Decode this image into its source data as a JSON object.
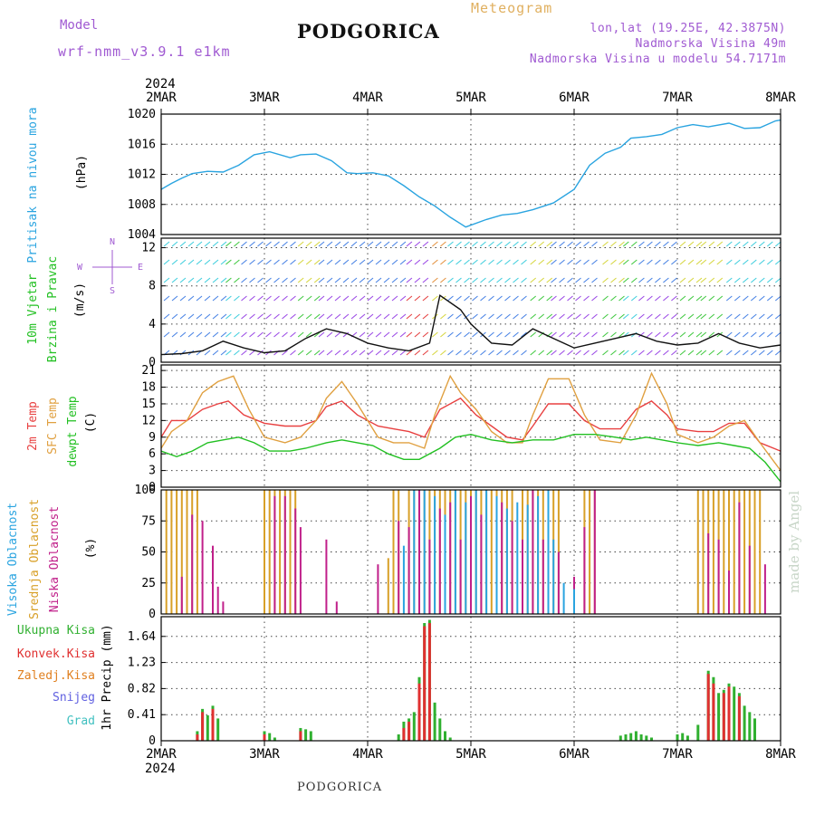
{
  "header": {
    "model_label": "Model",
    "model_name": "wrf-nmm_v3.9.1 e1km",
    "city": "PODGORICA",
    "meteogram": "Meteogram",
    "lonlat": "lon,lat (19.25E, 42.3875N)",
    "altitude": "Nadmorska Visina 49m",
    "model_altitude": "Nadmorska Visina u modelu 54.7171m",
    "footer": "PODGORICA",
    "made_by": "made by Angel"
  },
  "axis": {
    "year": "2024",
    "days": [
      "2MAR",
      "3MAR",
      "4MAR",
      "5MAR",
      "6MAR",
      "7MAR",
      "8MAR"
    ]
  },
  "colors": {
    "pressure": "#2aa4e0",
    "temp2m": "#e84040",
    "sfc_temp": "#e0a040",
    "dewpt": "#22c022",
    "high_cloud": "#2aa4e0",
    "mid_cloud": "#d8a028",
    "low_cloud": "#c0208a",
    "total_precip": "#30b030",
    "conv_precip": "#e03030"
  },
  "chart_data": [
    {
      "type": "line",
      "panel": "pressure",
      "ylabel": [
        "Pritisak na nivou mora",
        "(hPa)"
      ],
      "ylim": [
        1004,
        1020
      ],
      "yticks": [
        1004,
        1008,
        1012,
        1016,
        1020
      ],
      "xlim": [
        0,
        6
      ],
      "grid": true,
      "series": [
        {
          "name": "Pritisak na nivou mora",
          "x": [
            0,
            0.1,
            0.2,
            0.3,
            0.45,
            0.6,
            0.75,
            0.9,
            1.05,
            1.25,
            1.35,
            1.5,
            1.65,
            1.8,
            1.9,
            2.05,
            2.2,
            2.35,
            2.5,
            2.65,
            2.8,
            2.95,
            3.15,
            3.3,
            3.45,
            3.6,
            3.8,
            4.0,
            4.15,
            4.3,
            4.45,
            4.55,
            4.7,
            4.85,
            5.0,
            5.15,
            5.3,
            5.5,
            5.65,
            5.8,
            5.95,
            6.0
          ],
          "values": [
            1010,
            1010.8,
            1011.5,
            1012.1,
            1012.4,
            1012.3,
            1013.2,
            1014.6,
            1015,
            1014.2,
            1014.6,
            1014.7,
            1013.8,
            1012.2,
            1012.1,
            1012.2,
            1011.8,
            1010.5,
            1009,
            1007.8,
            1006.3,
            1005,
            1006,
            1006.6,
            1006.8,
            1007.3,
            1008.2,
            1010,
            1013.2,
            1014.8,
            1015.6,
            1016.8,
            1017,
            1017.3,
            1018.2,
            1018.6,
            1018.3,
            1018.8,
            1018.1,
            1018.2,
            1019.1,
            1019.2
          ]
        }
      ]
    },
    {
      "type": "line",
      "panel": "wind",
      "ylabel": [
        "10m Vjetar",
        "Brzina i Pravac",
        "(m/s)"
      ],
      "compass": [
        "N",
        "E",
        "S",
        "W"
      ],
      "ylim": [
        0,
        13
      ],
      "yticks": [
        0,
        4,
        8,
        12
      ],
      "xlim": [
        0,
        6
      ],
      "grid": true,
      "series": [
        {
          "name": "10m Vjetar",
          "x": [
            0,
            0.2,
            0.4,
            0.6,
            0.8,
            1.0,
            1.2,
            1.4,
            1.6,
            1.8,
            2.0,
            2.2,
            2.4,
            2.6,
            2.7,
            2.9,
            3.0,
            3.2,
            3.4,
            3.6,
            3.8,
            4.0,
            4.2,
            4.4,
            4.6,
            4.8,
            5.0,
            5.2,
            5.4,
            5.6,
            5.8,
            6.0
          ],
          "values": [
            0.8,
            0.9,
            1.2,
            2.2,
            1.5,
            1.0,
            1.2,
            2.5,
            3.5,
            3.0,
            2.0,
            1.5,
            1.2,
            2.0,
            7.0,
            5.5,
            4.0,
            2.0,
            1.8,
            3.5,
            2.5,
            1.5,
            2.0,
            2.5,
            3.0,
            2.2,
            1.8,
            2.0,
            3.0,
            2.0,
            1.5,
            1.8
          ]
        }
      ]
    },
    {
      "type": "line",
      "panel": "temperature",
      "ylabel": [
        "2m Temp",
        "SFC Temp",
        "dewpt Temp",
        "(C)"
      ],
      "ylim": [
        0,
        22
      ],
      "yticks": [
        0,
        3,
        6,
        9,
        12,
        15,
        18,
        21
      ],
      "xlim": [
        0,
        6
      ],
      "grid": true,
      "series": [
        {
          "name": "2m Temp",
          "x": [
            0,
            0.1,
            0.25,
            0.4,
            0.55,
            0.65,
            0.8,
            1.0,
            1.2,
            1.35,
            1.5,
            1.6,
            1.75,
            1.9,
            2.1,
            2.25,
            2.4,
            2.55,
            2.7,
            2.9,
            3.05,
            3.2,
            3.35,
            3.5,
            3.6,
            3.75,
            3.95,
            4.1,
            4.25,
            4.45,
            4.6,
            4.75,
            4.9,
            5.0,
            5.2,
            5.35,
            5.5,
            5.65,
            5.8,
            6.0
          ],
          "values": [
            9,
            12,
            12,
            14,
            15,
            15.5,
            13,
            11.5,
            11,
            11,
            12,
            14.5,
            15.5,
            13,
            11,
            10.5,
            10,
            9,
            14,
            16,
            13,
            11,
            9,
            8.5,
            11,
            15,
            15,
            12,
            10.5,
            10.5,
            14,
            15.5,
            13,
            10.5,
            10,
            10,
            11.5,
            11.5,
            8,
            6.5
          ]
        },
        {
          "name": "SFC Temp",
          "x": [
            0,
            0.1,
            0.25,
            0.4,
            0.55,
            0.7,
            0.85,
            1.0,
            1.2,
            1.35,
            1.5,
            1.6,
            1.75,
            1.9,
            2.1,
            2.25,
            2.4,
            2.55,
            2.65,
            2.8,
            2.9,
            3.05,
            3.2,
            3.35,
            3.5,
            3.6,
            3.75,
            3.95,
            4.1,
            4.25,
            4.45,
            4.6,
            4.75,
            4.9,
            5.0,
            5.2,
            5.35,
            5.5,
            5.65,
            5.8,
            6.0
          ],
          "values": [
            7,
            10,
            12,
            17,
            19,
            20,
            14,
            9,
            8,
            9,
            12,
            16,
            19,
            15,
            9,
            8,
            8,
            7,
            13,
            20,
            17,
            14,
            10,
            8,
            8,
            13,
            19.5,
            19.5,
            13,
            8.5,
            8,
            13,
            20.5,
            15,
            9.5,
            8,
            9,
            11,
            12,
            8,
            3
          ]
        },
        {
          "name": "dewpt Temp",
          "x": [
            0,
            0.15,
            0.3,
            0.45,
            0.6,
            0.75,
            0.9,
            1.05,
            1.25,
            1.4,
            1.6,
            1.75,
            1.9,
            2.05,
            2.2,
            2.35,
            2.5,
            2.7,
            2.85,
            3.0,
            3.2,
            3.4,
            3.6,
            3.8,
            4.0,
            4.2,
            4.4,
            4.55,
            4.7,
            4.85,
            5.0,
            5.2,
            5.4,
            5.55,
            5.7,
            5.85,
            6.0
          ],
          "values": [
            6.5,
            5.5,
            6.5,
            8,
            8.5,
            9,
            8,
            6.5,
            6.5,
            7,
            8,
            8.5,
            8,
            7.5,
            6,
            5,
            5,
            7,
            9,
            9.5,
            8.5,
            8,
            8.5,
            8.5,
            9.5,
            9.5,
            9,
            8.5,
            9,
            8.5,
            8,
            7.5,
            8,
            7.5,
            7,
            4.5,
            1
          ]
        }
      ]
    },
    {
      "type": "bar",
      "panel": "clouds",
      "ylabel": [
        "Visoka Oblacnost",
        "Srednja Oblacnost",
        "Niska Oblacnost",
        "(%)"
      ],
      "ylim": [
        0,
        100
      ],
      "yticks": [
        0,
        25,
        50,
        75,
        100
      ],
      "xlim": [
        0,
        6
      ],
      "grid": true,
      "series": [
        {
          "name": "Srednja Oblacnost",
          "x": [
            0.05,
            0.1,
            0.15,
            0.2,
            0.25,
            0.3,
            0.35,
            1.0,
            1.05,
            1.1,
            1.15,
            1.2,
            1.25,
            1.3,
            2.2,
            2.25,
            2.3,
            2.4,
            2.45,
            2.5,
            2.55,
            2.6,
            2.65,
            2.7,
            2.75,
            2.8,
            2.85,
            2.9,
            2.95,
            3.0,
            3.05,
            3.1,
            3.15,
            3.2,
            3.25,
            3.3,
            3.35,
            3.4,
            3.5,
            3.55,
            3.6,
            3.65,
            3.7,
            3.75,
            3.8,
            3.85,
            4.1,
            4.15,
            4.2,
            5.2,
            5.25,
            5.3,
            5.35,
            5.4,
            5.45,
            5.5,
            5.55,
            5.6,
            5.65,
            5.7,
            5.75,
            5.8
          ],
          "values": [
            100,
            100,
            100,
            100,
            100,
            100,
            100,
            100,
            100,
            100,
            100,
            100,
            100,
            100,
            45,
            100,
            100,
            100,
            100,
            100,
            100,
            100,
            100,
            100,
            100,
            100,
            100,
            100,
            100,
            100,
            100,
            100,
            100,
            100,
            100,
            100,
            100,
            100,
            100,
            100,
            100,
            100,
            100,
            100,
            100,
            100,
            100,
            100,
            100,
            100,
            100,
            100,
            100,
            100,
            100,
            100,
            100,
            100,
            100,
            100,
            100,
            100
          ]
        },
        {
          "name": "Niska Oblacnost",
          "x": [
            0.2,
            0.3,
            0.4,
            0.5,
            0.55,
            0.6,
            1.1,
            1.2,
            1.3,
            1.35,
            1.6,
            1.7,
            2.1,
            2.3,
            2.4,
            2.5,
            2.6,
            2.7,
            2.8,
            2.9,
            3.0,
            3.1,
            3.3,
            3.4,
            3.5,
            3.6,
            3.7,
            3.85,
            4.0,
            4.1,
            4.2,
            5.3,
            5.4,
            5.5,
            5.6,
            5.7,
            5.85
          ],
          "values": [
            30,
            80,
            75,
            55,
            22,
            10,
            95,
            95,
            85,
            70,
            60,
            10,
            40,
            75,
            70,
            100,
            60,
            85,
            90,
            60,
            95,
            80,
            90,
            75,
            60,
            100,
            60,
            50,
            30,
            70,
            100,
            65,
            60,
            35,
            90,
            55,
            40
          ]
        },
        {
          "name": "Visoka Oblacnost",
          "x": [
            2.35,
            2.45,
            2.55,
            2.65,
            2.75,
            2.85,
            2.95,
            3.05,
            3.15,
            3.25,
            3.35,
            3.45,
            3.55,
            3.65,
            3.75,
            3.8,
            3.9,
            4.0
          ],
          "values": [
            55,
            100,
            100,
            95,
            80,
            100,
            90,
            100,
            100,
            95,
            85,
            90,
            88,
            95,
            100,
            60,
            25,
            20
          ]
        }
      ]
    },
    {
      "type": "bar",
      "panel": "precipitation",
      "ylabel": [
        "Ukupna Kisa",
        "Konvek.Kisa",
        "Zaledj.Kisa",
        "Snijeg",
        "Grad",
        "1hr Precip (mm)"
      ],
      "ylim": [
        0,
        1.95
      ],
      "yticks": [
        0,
        0.41,
        0.82,
        1.23,
        1.64
      ],
      "xlim": [
        0,
        6
      ],
      "grid": true,
      "series": [
        {
          "name": "Ukupna Kisa",
          "x": [
            0.35,
            0.4,
            0.45,
            0.5,
            0.55,
            1.0,
            1.05,
            1.1,
            1.35,
            1.4,
            1.45,
            2.3,
            2.35,
            2.4,
            2.45,
            2.5,
            2.55,
            2.6,
            2.65,
            2.7,
            2.75,
            2.8,
            4.45,
            4.5,
            4.55,
            4.6,
            4.65,
            4.7,
            4.75,
            5.0,
            5.05,
            5.1,
            5.2,
            5.3,
            5.35,
            5.4,
            5.45,
            5.5,
            5.55,
            5.6,
            5.65,
            5.7,
            5.75
          ],
          "values": [
            0.15,
            0.5,
            0.4,
            0.55,
            0.35,
            0.15,
            0.12,
            0.05,
            0.2,
            0.18,
            0.15,
            0.1,
            0.3,
            0.35,
            0.45,
            1.0,
            1.85,
            1.9,
            0.6,
            0.35,
            0.15,
            0.05,
            0.08,
            0.1,
            0.12,
            0.15,
            0.1,
            0.08,
            0.05,
            0.1,
            0.12,
            0.08,
            0.25,
            1.1,
            1.0,
            0.75,
            0.8,
            0.9,
            0.85,
            0.75,
            0.55,
            0.45,
            0.35
          ]
        },
        {
          "name": "Konvek.Kisa",
          "x": [
            0.35,
            0.4,
            0.5,
            1.0,
            1.35,
            2.35,
            2.4,
            2.5,
            2.55,
            2.6,
            5.3,
            5.35,
            5.45,
            5.5,
            5.6
          ],
          "values": [
            0.1,
            0.45,
            0.5,
            0.1,
            0.15,
            0.2,
            0.3,
            0.9,
            1.8,
            1.85,
            1.05,
            0.9,
            0.75,
            0.85,
            0.7
          ]
        }
      ]
    }
  ]
}
